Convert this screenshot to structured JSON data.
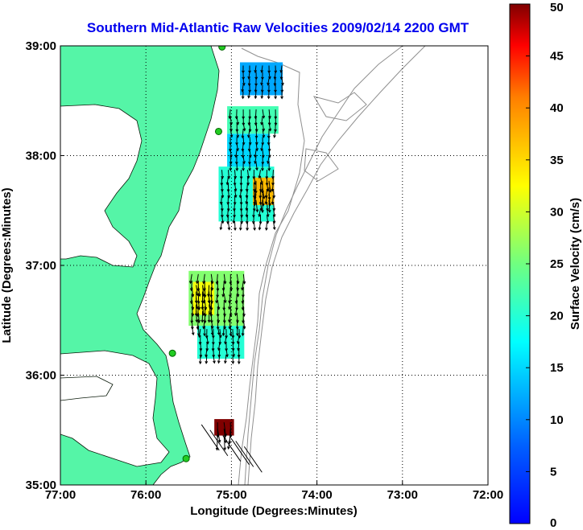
{
  "chart_data": {
    "type": "heatmap",
    "title": "Southern Mid-Atlantic Raw Velocities 2009/02/14 2200 GMT",
    "xlabel": "Longitude (Degrees:Minutes)",
    "ylabel": "Latitude (Degrees:Minutes)",
    "x_ticks": [
      "77:00",
      "76:00",
      "75:00",
      "74:00",
      "73:00",
      "72:00"
    ],
    "x_tick_values": [
      -77,
      -76,
      -75,
      -74,
      -73,
      -72
    ],
    "y_ticks": [
      "39:00",
      "38:00",
      "37:00",
      "36:00",
      "35:00"
    ],
    "y_tick_values": [
      39,
      38,
      37,
      36,
      35
    ],
    "xlim": [
      -77,
      -72
    ],
    "ylim": [
      35,
      39
    ],
    "grid": true,
    "colorbar": {
      "label": "Surface Velocity (cm/s)",
      "range": [
        0,
        50
      ],
      "ticks": [
        "0",
        "5",
        "10",
        "15",
        "20",
        "25",
        "30",
        "35",
        "40",
        "45",
        "50"
      ],
      "tick_values": [
        0,
        5,
        10,
        15,
        20,
        25,
        30,
        35,
        40,
        45,
        50
      ],
      "colormap": "jet"
    },
    "land_color": "#55f5a7",
    "radar_sites": [
      {
        "lon": -75.11,
        "lat": 38.99
      },
      {
        "lon": -75.15,
        "lat": 38.22
      },
      {
        "lon": -75.69,
        "lat": 36.2
      },
      {
        "lon": -75.53,
        "lat": 35.24
      }
    ],
    "velocity_regions": [
      {
        "lat_range": [
          37.88,
          38.2
        ],
        "lon_range": [
          -75.05,
          -74.55
        ],
        "speed_cm_s": 15
      },
      {
        "lat_range": [
          37.4,
          37.9
        ],
        "lon_range": [
          -75.15,
          -74.5
        ],
        "speed_cm_s": 20
      },
      {
        "lat_range": [
          37.55,
          37.8
        ],
        "lon_range": [
          -74.75,
          -74.5
        ],
        "speed_cm_s": 37
      },
      {
        "lat_range": [
          38.2,
          38.45
        ],
        "lon_range": [
          -75.05,
          -74.45
        ],
        "speed_cm_s": 22
      },
      {
        "lat_range": [
          38.55,
          38.85
        ],
        "lon_range": [
          -74.9,
          -74.4
        ],
        "speed_cm_s": 12
      },
      {
        "lat_range": [
          36.45,
          36.95
        ],
        "lon_range": [
          -75.5,
          -74.85
        ],
        "speed_cm_s": 26
      },
      {
        "lat_range": [
          36.15,
          36.45
        ],
        "lon_range": [
          -75.4,
          -74.85
        ],
        "speed_cm_s": 20
      },
      {
        "lat_range": [
          36.55,
          36.85
        ],
        "lon_range": [
          -75.45,
          -75.2
        ],
        "speed_cm_s": 32
      },
      {
        "lat_range": [
          35.45,
          35.6
        ],
        "lon_range": [
          -75.2,
          -74.97
        ],
        "speed_cm_s": 50
      }
    ]
  }
}
